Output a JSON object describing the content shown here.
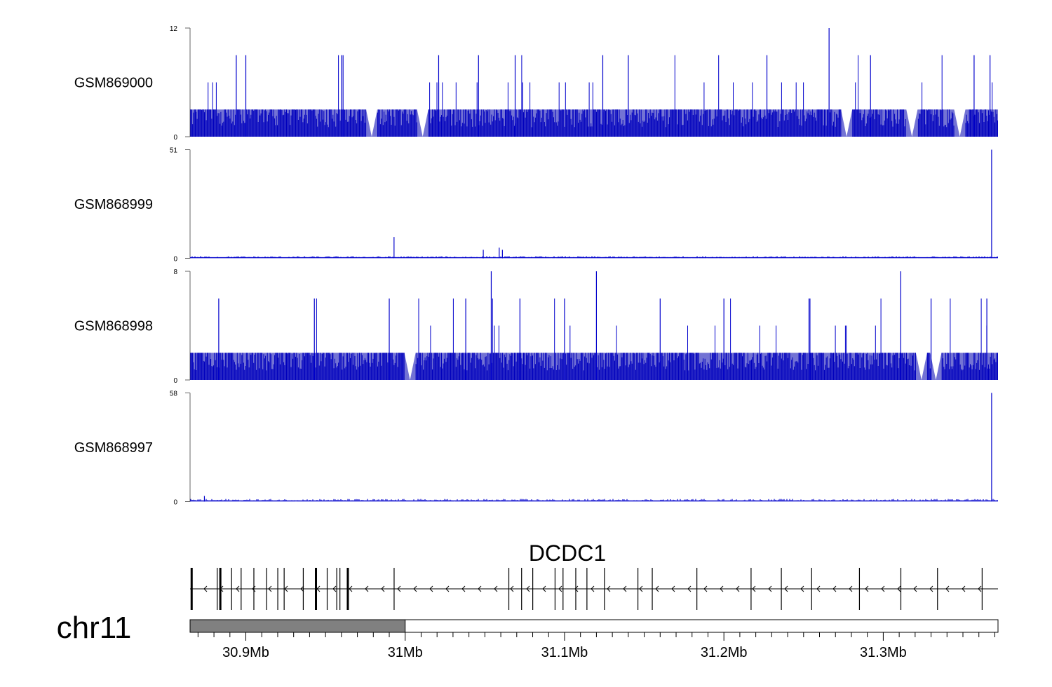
{
  "chart_data": {
    "type": "area",
    "xlabel": "",
    "ylabel": "",
    "chromosome": "chr11",
    "xlim": [
      30.865,
      31.372
    ],
    "x_unit": "Mb",
    "x_ticks": [
      {
        "value": 30.9,
        "label": "30.9Mb"
      },
      {
        "value": 31.0,
        "label": "31Mb"
      },
      {
        "value": 31.1,
        "label": "31.1Mb"
      },
      {
        "value": 31.2,
        "label": "31.2Mb"
      },
      {
        "value": 31.3,
        "label": "31.3Mb"
      }
    ],
    "ideogram_region": [
      30.865,
      31.0
    ],
    "series": [
      {
        "name": "GSM869000",
        "ylim": [
          0,
          12
        ],
        "y_ticks": [
          "0",
          "12"
        ],
        "baseline": 3,
        "levels": [
          3,
          6,
          9
        ],
        "peaks": [
          {
            "x": 31.266,
            "y": 12
          },
          {
            "x": 30.894,
            "y": 9
          },
          {
            "x": 30.9,
            "y": 9
          },
          {
            "x": 30.961,
            "y": 9
          },
          {
            "x": 31.021,
            "y": 9
          },
          {
            "x": 31.046,
            "y": 9
          },
          {
            "x": 31.069,
            "y": 9
          },
          {
            "x": 31.124,
            "y": 9
          },
          {
            "x": 31.14,
            "y": 9
          },
          {
            "x": 31.227,
            "y": 9
          },
          {
            "x": 31.292,
            "y": 9
          },
          {
            "x": 31.357,
            "y": 9
          },
          {
            "x": 31.367,
            "y": 9
          }
        ],
        "gaps": [
          30.979,
          31.011,
          31.277,
          31.318,
          31.348
        ]
      },
      {
        "name": "GSM868999",
        "ylim": [
          0,
          51
        ],
        "y_ticks": [
          "0",
          "51"
        ],
        "baseline": 0.6,
        "peaks": [
          {
            "x": 31.368,
            "y": 51
          },
          {
            "x": 30.993,
            "y": 10
          },
          {
            "x": 31.049,
            "y": 4
          },
          {
            "x": 31.059,
            "y": 5
          },
          {
            "x": 31.061,
            "y": 4
          }
        ]
      },
      {
        "name": "GSM868998",
        "ylim": [
          0,
          8
        ],
        "y_ticks": [
          "0",
          "8"
        ],
        "baseline": 2,
        "levels": [
          2,
          4,
          6
        ],
        "peaks": [
          {
            "x": 31.054,
            "y": 8
          },
          {
            "x": 31.12,
            "y": 8
          },
          {
            "x": 31.311,
            "y": 8
          },
          {
            "x": 30.883,
            "y": 6
          },
          {
            "x": 30.943,
            "y": 6
          },
          {
            "x": 30.99,
            "y": 6
          },
          {
            "x": 31.038,
            "y": 6
          },
          {
            "x": 31.072,
            "y": 6
          },
          {
            "x": 31.1,
            "y": 6
          },
          {
            "x": 31.16,
            "y": 6
          },
          {
            "x": 31.2,
            "y": 6
          },
          {
            "x": 31.254,
            "y": 6
          },
          {
            "x": 31.33,
            "y": 6
          },
          {
            "x": 31.365,
            "y": 6
          }
        ],
        "gaps": [
          31.003,
          31.324,
          31.333
        ]
      },
      {
        "name": "GSM868997",
        "ylim": [
          0,
          58
        ],
        "y_ticks": [
          "0",
          "58"
        ],
        "baseline": 0.8,
        "peaks": [
          {
            "x": 31.368,
            "y": 58
          },
          {
            "x": 30.874,
            "y": 3
          }
        ]
      }
    ],
    "gene": {
      "name": "DCDC1",
      "start": 30.865,
      "end": 31.372,
      "strand": "-",
      "exons": [
        30.866,
        30.882,
        30.884,
        30.891,
        30.897,
        30.905,
        30.913,
        30.92,
        30.924,
        30.936,
        30.944,
        30.951,
        30.957,
        30.959,
        30.964,
        30.993,
        31.065,
        31.073,
        31.08,
        31.094,
        31.099,
        31.107,
        31.114,
        31.125,
        31.146,
        31.155,
        31.183,
        31.217,
        31.236,
        31.255,
        31.285,
        31.311,
        31.334,
        31.362
      ]
    }
  }
}
